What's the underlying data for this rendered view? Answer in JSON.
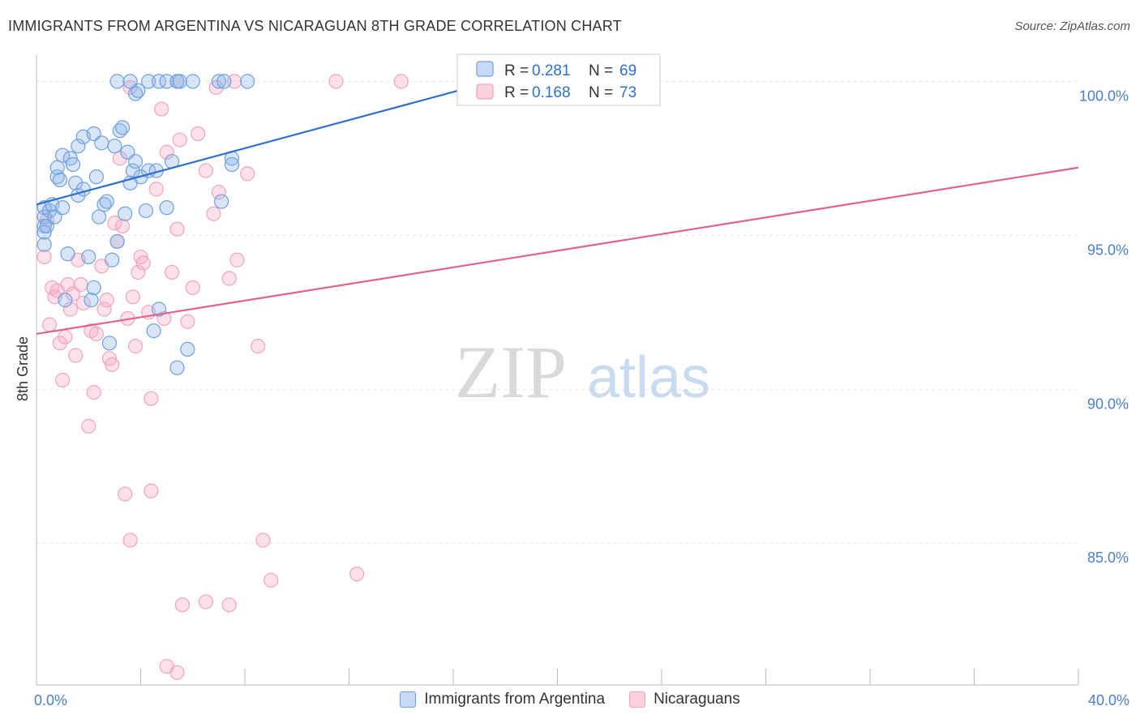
{
  "title": "IMMIGRANTS FROM ARGENTINA VS NICARAGUAN 8TH GRADE CORRELATION CHART",
  "source": "Source: ZipAtlas.com",
  "watermark": {
    "zip": "ZIP",
    "atlas": "atlas"
  },
  "chart_data": {
    "type": "scatter",
    "ylabel": "8th Grade",
    "xlabel": "",
    "xlim": [
      0.0,
      40.0
    ],
    "ylim": [
      80.4,
      100.8
    ],
    "x_tick_labels": [
      "0.0%",
      "40.0%"
    ],
    "y_ticks": [
      {
        "value": 100.0,
        "label": "100.0%"
      },
      {
        "value": 95.0,
        "label": "95.0%"
      },
      {
        "value": 90.0,
        "label": "90.0%"
      },
      {
        "value": 85.0,
        "label": "85.0%"
      }
    ],
    "grid": true,
    "legend_top": [
      {
        "r_label": "R =",
        "r": "0.281",
        "n_label": "N =",
        "n": "69"
      },
      {
        "r_label": "R =",
        "r": "0.168",
        "n_label": "N =",
        "n": "73"
      }
    ],
    "series": [
      {
        "name": "Immigrants from Argentina",
        "color": "#6fa0e0",
        "line_color": "#2f6fd0",
        "trend": [
          [
            0.0,
            96.0
          ],
          [
            17.5,
            100.0
          ]
        ],
        "points": [
          [
            0.3,
            95.9
          ],
          [
            0.3,
            95.6
          ],
          [
            0.3,
            95.3
          ],
          [
            0.3,
            95.1
          ],
          [
            0.3,
            94.7
          ],
          [
            0.4,
            95.3
          ],
          [
            0.5,
            95.8
          ],
          [
            0.6,
            96.0
          ],
          [
            0.7,
            95.6
          ],
          [
            0.8,
            96.9
          ],
          [
            0.8,
            97.2
          ],
          [
            0.9,
            96.8
          ],
          [
            1.0,
            95.9
          ],
          [
            1.0,
            97.6
          ],
          [
            1.1,
            92.9
          ],
          [
            1.2,
            94.4
          ],
          [
            1.3,
            97.5
          ],
          [
            1.4,
            97.3
          ],
          [
            1.5,
            96.7
          ],
          [
            1.6,
            96.3
          ],
          [
            1.6,
            97.9
          ],
          [
            1.8,
            98.2
          ],
          [
            1.8,
            96.5
          ],
          [
            2.0,
            94.3
          ],
          [
            2.1,
            92.9
          ],
          [
            2.2,
            93.3
          ],
          [
            2.2,
            98.3
          ],
          [
            2.3,
            96.9
          ],
          [
            2.4,
            95.6
          ],
          [
            2.5,
            98.0
          ],
          [
            2.6,
            96.0
          ],
          [
            2.7,
            96.1
          ],
          [
            2.8,
            91.5
          ],
          [
            2.9,
            94.2
          ],
          [
            3.0,
            97.9
          ],
          [
            3.1,
            94.8
          ],
          [
            3.2,
            98.4
          ],
          [
            3.3,
            98.5
          ],
          [
            3.4,
            95.7
          ],
          [
            3.5,
            97.7
          ],
          [
            3.6,
            96.7
          ],
          [
            3.7,
            97.1
          ],
          [
            3.8,
            97.4
          ],
          [
            3.8,
            99.6
          ],
          [
            3.9,
            99.7
          ],
          [
            4.0,
            96.9
          ],
          [
            4.2,
            95.8
          ],
          [
            4.3,
            97.1
          ],
          [
            4.5,
            91.9
          ],
          [
            4.6,
            97.1
          ],
          [
            4.7,
            92.6
          ],
          [
            5.0,
            95.9
          ],
          [
            5.2,
            97.4
          ],
          [
            5.4,
            90.7
          ],
          [
            5.8,
            91.3
          ],
          [
            7.1,
            96.1
          ],
          [
            7.5,
            97.5
          ],
          [
            7.5,
            97.3
          ],
          [
            3.1,
            100.0
          ],
          [
            3.6,
            100.0
          ],
          [
            4.3,
            100.0
          ],
          [
            4.7,
            100.0
          ],
          [
            5.0,
            100.0
          ],
          [
            5.4,
            100.0
          ],
          [
            5.5,
            100.0
          ],
          [
            6.0,
            100.0
          ],
          [
            7.0,
            100.0
          ],
          [
            7.2,
            100.0
          ],
          [
            8.1,
            100.0
          ]
        ]
      },
      {
        "name": "Nicaraguans",
        "color": "#f4a3bd",
        "line_color": "#e0628e",
        "trend": [
          [
            0.0,
            91.8
          ],
          [
            40.0,
            97.2
          ]
        ],
        "points": [
          [
            0.3,
            94.3
          ],
          [
            0.4,
            95.5
          ],
          [
            0.5,
            92.1
          ],
          [
            0.6,
            93.3
          ],
          [
            0.7,
            93.0
          ],
          [
            0.8,
            93.2
          ],
          [
            0.9,
            91.5
          ],
          [
            1.0,
            90.3
          ],
          [
            1.1,
            91.7
          ],
          [
            1.2,
            93.4
          ],
          [
            1.3,
            92.6
          ],
          [
            1.4,
            93.1
          ],
          [
            1.5,
            91.1
          ],
          [
            1.6,
            94.2
          ],
          [
            1.7,
            93.4
          ],
          [
            1.8,
            92.8
          ],
          [
            2.0,
            88.8
          ],
          [
            2.1,
            91.9
          ],
          [
            2.2,
            89.9
          ],
          [
            2.3,
            91.8
          ],
          [
            2.5,
            94.0
          ],
          [
            2.6,
            92.6
          ],
          [
            2.7,
            92.9
          ],
          [
            2.8,
            91.0
          ],
          [
            2.9,
            90.8
          ],
          [
            3.0,
            95.4
          ],
          [
            3.1,
            94.8
          ],
          [
            3.2,
            97.5
          ],
          [
            3.3,
            95.3
          ],
          [
            3.4,
            86.6
          ],
          [
            3.5,
            92.3
          ],
          [
            3.7,
            93.0
          ],
          [
            3.8,
            91.4
          ],
          [
            3.9,
            93.8
          ],
          [
            4.0,
            94.3
          ],
          [
            4.1,
            94.1
          ],
          [
            4.3,
            92.5
          ],
          [
            4.4,
            89.7
          ],
          [
            4.6,
            96.5
          ],
          [
            4.8,
            99.1
          ],
          [
            4.9,
            92.3
          ],
          [
            5.0,
            97.7
          ],
          [
            5.2,
            93.8
          ],
          [
            5.4,
            95.2
          ],
          [
            5.5,
            98.1
          ],
          [
            5.8,
            92.2
          ],
          [
            6.0,
            93.3
          ],
          [
            6.2,
            98.3
          ],
          [
            6.5,
            97.1
          ],
          [
            6.8,
            95.7
          ],
          [
            7.0,
            96.4
          ],
          [
            7.4,
            93.6
          ],
          [
            7.7,
            94.2
          ],
          [
            8.1,
            97.0
          ],
          [
            8.5,
            91.4
          ],
          [
            5.0,
            81.0
          ],
          [
            5.4,
            80.8
          ],
          [
            5.6,
            83.0
          ],
          [
            6.5,
            83.1
          ],
          [
            7.4,
            83.0
          ],
          [
            3.6,
            85.1
          ],
          [
            4.4,
            86.7
          ],
          [
            8.7,
            85.1
          ],
          [
            9.0,
            83.8
          ],
          [
            12.3,
            84.0
          ],
          [
            3.6,
            99.8
          ],
          [
            5.4,
            100.0
          ],
          [
            6.9,
            99.8
          ],
          [
            7.6,
            100.0
          ],
          [
            11.5,
            100.0
          ],
          [
            14.0,
            100.0
          ],
          [
            17.7,
            100.0
          ],
          [
            23.5,
            100.0
          ]
        ]
      }
    ]
  }
}
